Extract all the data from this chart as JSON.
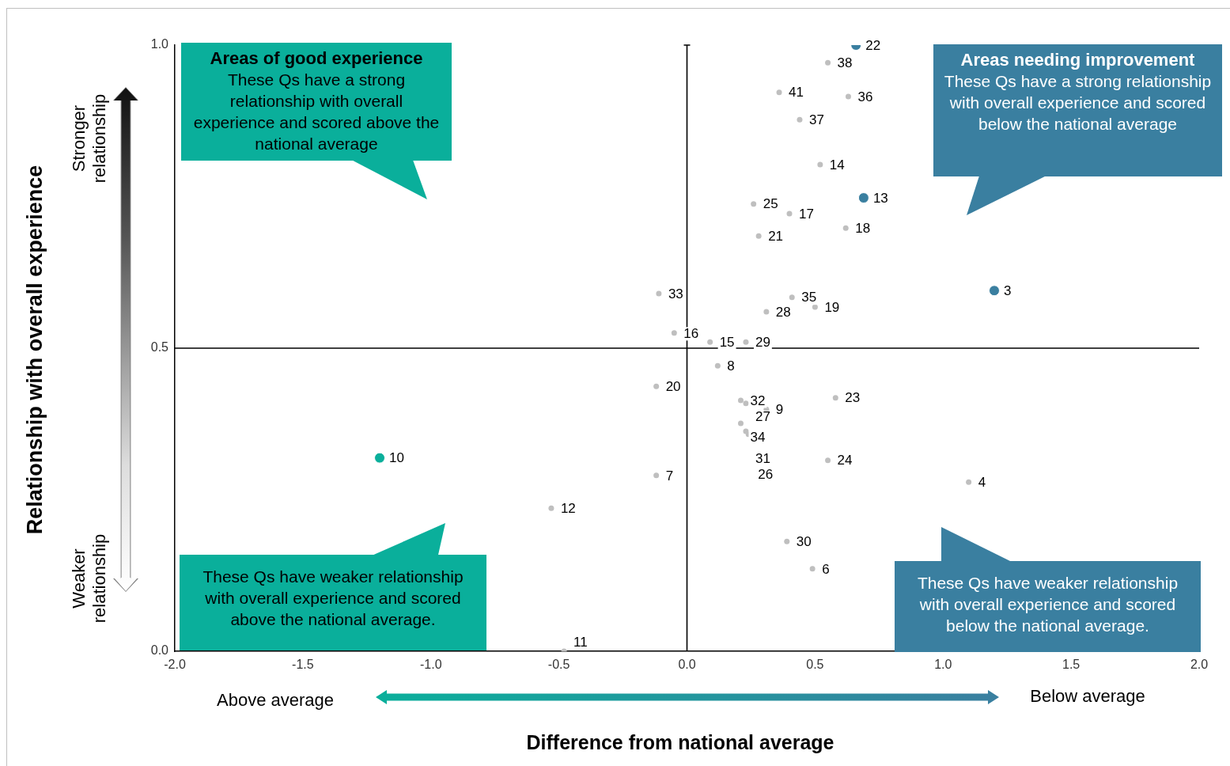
{
  "chart_data": {
    "type": "scatter",
    "xlabel": "Difference from national average",
    "ylabel": "Relationship with overall experience",
    "xlim": [
      -2,
      2
    ],
    "ylim": [
      0,
      1
    ],
    "xticks": [
      {
        "value": -2,
        "label": "-2.0"
      },
      {
        "value": -1.5,
        "label": "-1.5"
      },
      {
        "value": -1,
        "label": "-1.0"
      },
      {
        "value": -0.5,
        "label": "-0.5"
      },
      {
        "value": 0,
        "label": "0.0"
      },
      {
        "value": 0.5,
        "label": "0.5"
      },
      {
        "value": 1,
        "label": "1.0"
      },
      {
        "value": 1.5,
        "label": "1.5"
      },
      {
        "value": 2,
        "label": "2.0"
      }
    ],
    "yticks": [
      {
        "value": 0,
        "label": "0.0"
      },
      {
        "value": 0.5,
        "label": "0.5"
      },
      {
        "value": 1,
        "label": "1.0"
      }
    ],
    "marker": "circle",
    "legend": false,
    "ref_lines": [
      {
        "axis": "x",
        "value": 0,
        "color": "#000000"
      },
      {
        "axis": "y",
        "value": 0.5,
        "color": "#000000"
      }
    ],
    "series": [
      {
        "color": "#bfbfbf",
        "x": [
          0.55,
          0.36,
          0.63,
          0.44,
          0.52,
          0.26,
          0.4,
          0.62,
          0.28,
          -0.11,
          0.41,
          0.5,
          0.31,
          -0.05,
          0.09,
          0.23,
          0.12,
          -0.12,
          0.21,
          0.23,
          0.31,
          0.58,
          0.21,
          0.23,
          0.24,
          0.55,
          -0.12,
          1.1,
          -0.53,
          0.39,
          0.49,
          -0.48
        ],
        "values": [
          0.971,
          0.922,
          0.915,
          0.877,
          0.803,
          0.738,
          0.722,
          0.698,
          0.685,
          0.59,
          0.584,
          0.568,
          0.56,
          0.525,
          0.51,
          0.51,
          0.471,
          0.437,
          0.414,
          0.409,
          0.399,
          0.418,
          0.376,
          0.363,
          0.358,
          0.315,
          0.29,
          0.279,
          0.236,
          0.181,
          0.136,
          0.0
        ]
      },
      {
        "color": "#3a7fa0",
        "x": [
          0.66,
          0.69,
          1.2
        ],
        "values": [
          1.0,
          0.748,
          0.595
        ]
      },
      {
        "color": "#0aaf9b",
        "x": [
          -1.2
        ],
        "values": [
          0.319
        ]
      }
    ],
    "annotations": [
      "Areas of good experience",
      "These Qs have a strong relationship with overall experience and scored above the national average",
      "Areas needing improvement",
      "These Qs have a strong relationship with overall experience and scored below the national average",
      "These Qs have weaker relationship with overall experience and scored above the national average.",
      "These Qs have weaker relationship with overall experience and scored below the national average.",
      "Stronger relationship",
      "Weaker relationship",
      "Above average",
      "Below average",
      {
        "text": "38",
        "x": 0.55,
        "y": 0.971
      },
      {
        "text": "41",
        "x": 0.36,
        "y": 0.922
      },
      {
        "text": "36",
        "x": 0.63,
        "y": 0.915
      },
      {
        "text": "37",
        "x": 0.44,
        "y": 0.877
      },
      {
        "text": "14",
        "x": 0.52,
        "y": 0.803
      },
      {
        "text": "25",
        "x": 0.26,
        "y": 0.738
      },
      {
        "text": "17",
        "x": 0.4,
        "y": 0.722
      },
      {
        "text": "18",
        "x": 0.62,
        "y": 0.698
      },
      {
        "text": "21",
        "x": 0.28,
        "y": 0.685
      },
      {
        "text": "33",
        "x": -0.11,
        "y": 0.59
      },
      {
        "text": "35",
        "x": 0.41,
        "y": 0.584
      },
      {
        "text": "19",
        "x": 0.5,
        "y": 0.568
      },
      {
        "text": "28",
        "x": 0.31,
        "y": 0.56
      },
      {
        "text": "16",
        "x": -0.05,
        "y": 0.525
      },
      {
        "text": "15",
        "x": 0.09,
        "y": 0.51
      },
      {
        "text": "29",
        "x": 0.23,
        "y": 0.51
      },
      {
        "text": "8",
        "x": 0.12,
        "y": 0.471
      },
      {
        "text": "20",
        "x": -0.12,
        "y": 0.437
      },
      {
        "text": "32",
        "x": 0.21,
        "y": 0.414
      },
      {
        "text": "27",
        "x": 0.23,
        "y": 0.409
      },
      {
        "text": "9",
        "x": 0.31,
        "y": 0.399
      },
      {
        "text": "23",
        "x": 0.58,
        "y": 0.418
      },
      {
        "text": "34",
        "x": 0.21,
        "y": 0.376
      },
      {
        "text": "31",
        "x": 0.23,
        "y": 0.363
      },
      {
        "text": "26",
        "x": 0.24,
        "y": 0.358
      },
      {
        "text": "24",
        "x": 0.55,
        "y": 0.315
      },
      {
        "text": "7",
        "x": -0.12,
        "y": 0.29
      },
      {
        "text": "4",
        "x": 1.1,
        "y": 0.279
      },
      {
        "text": "12",
        "x": -0.53,
        "y": 0.236
      },
      {
        "text": "30",
        "x": 0.39,
        "y": 0.181
      },
      {
        "text": "6",
        "x": 0.49,
        "y": 0.136
      },
      {
        "text": "11",
        "x": -0.48,
        "y": 0.0
      },
      {
        "text": "22",
        "x": 0.66,
        "y": 1.0
      },
      {
        "text": "13",
        "x": 0.69,
        "y": 0.748
      },
      {
        "text": "3",
        "x": 1.2,
        "y": 0.595
      },
      {
        "text": "10",
        "x": -1.2,
        "y": 0.319
      }
    ]
  }
}
